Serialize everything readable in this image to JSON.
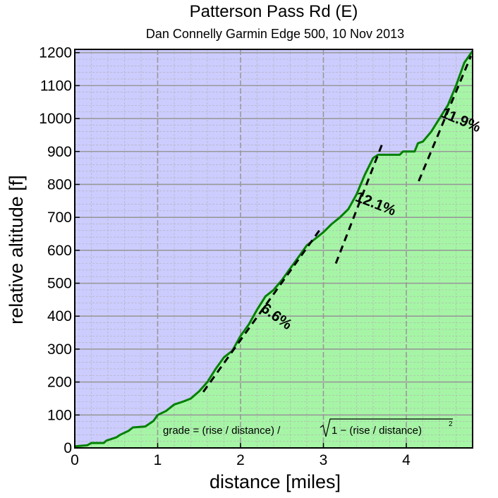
{
  "chart_data": {
    "type": "area",
    "title": "Patterson Pass Rd (E)",
    "subtitle": "Dan Connelly Garmin Edge 500, 10 Nov 2013",
    "xlabel": "distance [miles]",
    "ylabel": "relative altitude [f]",
    "xlim": [
      0,
      4.8
    ],
    "ylim": [
      0,
      1210
    ],
    "x_ticks": [
      0,
      1,
      2,
      3,
      4
    ],
    "y_ticks": [
      0,
      100,
      200,
      300,
      400,
      500,
      600,
      700,
      800,
      900,
      1000,
      1100,
      1200
    ],
    "grid": true,
    "colors": {
      "sky": "#ccccff",
      "ground": "#a6f5a6",
      "profile": "#008000",
      "major_grid": "#999999",
      "minor_grid": "#b0b0b0"
    },
    "profile": {
      "x": [
        0,
        0.15,
        0.2,
        0.35,
        0.38,
        0.5,
        0.55,
        0.65,
        0.7,
        0.85,
        0.95,
        1.0,
        1.1,
        1.2,
        1.3,
        1.4,
        1.5,
        1.6,
        1.7,
        1.8,
        1.9,
        2.0,
        2.1,
        2.2,
        2.3,
        2.4,
        2.5,
        2.6,
        2.7,
        2.8,
        2.9,
        3.0,
        3.1,
        3.2,
        3.3,
        3.4,
        3.5,
        3.6,
        3.66,
        3.7,
        3.8,
        3.92,
        3.96,
        4.1,
        4.14,
        4.2,
        4.3,
        4.4,
        4.5,
        4.6,
        4.7,
        4.8
      ],
      "y": [
        5,
        8,
        15,
        15,
        22,
        32,
        40,
        52,
        62,
        65,
        82,
        100,
        112,
        132,
        140,
        150,
        172,
        200,
        240,
        275,
        295,
        340,
        375,
        420,
        460,
        480,
        510,
        545,
        580,
        615,
        635,
        655,
        680,
        700,
        725,
        770,
        830,
        880,
        890,
        890,
        890,
        890,
        900,
        900,
        925,
        930,
        960,
        1000,
        1040,
        1100,
        1170,
        1205
      ]
    },
    "grade_lines": [
      {
        "label": "6.6%",
        "x": [
          1.55,
          2.95
        ],
        "y": [
          170,
          660
        ]
      },
      {
        "label": "12.1%",
        "x": [
          3.15,
          3.72
        ],
        "y": [
          560,
          930
        ]
      },
      {
        "label": "11.9%",
        "x": [
          4.15,
          4.78
        ],
        "y": [
          810,
          1190
        ]
      }
    ],
    "annotation": {
      "prefix": "grade = (rise / distance) / ",
      "radicand": "1 − (rise / distance)",
      "exponent": "2"
    }
  }
}
